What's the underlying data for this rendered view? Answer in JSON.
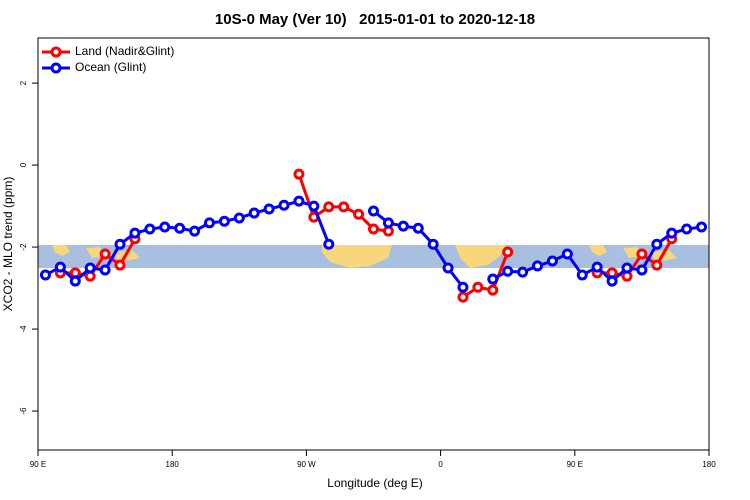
{
  "chart_data": {
    "type": "line",
    "title": "10S-0 May (Ver 10)   2015-01-01 to 2020-12-18",
    "xlabel": "Longitude (deg E)",
    "ylabel": "XCO2 - MLO trend (ppm)",
    "x": [
      95,
      105,
      115,
      125,
      135,
      145,
      155,
      165,
      175,
      185,
      195,
      205,
      215,
      225,
      235,
      245,
      255,
      265,
      275,
      285,
      295,
      305,
      315,
      325,
      335,
      345,
      355,
      365,
      375,
      385,
      395,
      405,
      415,
      425,
      435,
      445,
      455,
      465,
      475,
      485,
      495,
      505,
      515,
      525,
      535
    ],
    "series": [
      {
        "name": "Land (Nadir&Glint)",
        "color": "#ff0000",
        "values": [
          null,
          -2.63,
          -2.63,
          -2.71,
          -2.17,
          -2.44,
          -1.8,
          null,
          null,
          null,
          null,
          null,
          null,
          null,
          null,
          null,
          null,
          -0.22,
          -1.27,
          -1.02,
          -1.02,
          -1.2,
          -1.56,
          -1.61,
          null,
          null,
          null,
          null,
          -3.22,
          -2.98,
          -3.05,
          -2.12,
          null,
          null,
          null,
          null,
          null,
          -2.63,
          -2.63,
          -2.71,
          -2.17,
          -2.44,
          -1.8,
          null,
          null
        ]
      },
      {
        "name": "Ocean (Glint)",
        "color": "#0000ff",
        "values": [
          -2.68,
          -2.49,
          -2.83,
          -2.51,
          -2.56,
          -1.93,
          -1.66,
          -1.56,
          -1.51,
          -1.54,
          -1.61,
          -1.41,
          -1.37,
          -1.29,
          -1.17,
          -1.07,
          -0.98,
          -0.88,
          -1.0,
          -1.93,
          null,
          null,
          -1.12,
          -1.41,
          -1.49,
          -1.54,
          -1.93,
          -2.51,
          -2.98,
          null,
          -2.78,
          -2.59,
          -2.61,
          -2.46,
          -2.34,
          -2.17,
          -2.68,
          -2.49,
          -2.83,
          -2.51,
          -2.56,
          -1.93,
          -1.66,
          -1.56,
          -1.51
        ]
      }
    ],
    "xlim": [
      90,
      540
    ],
    "xticks": [
      {
        "value": 90,
        "label": "90 E"
      },
      {
        "value": 180,
        "label": "180"
      },
      {
        "value": 270,
        "label": "90 W"
      },
      {
        "value": 360,
        "label": "0"
      },
      {
        "value": 450,
        "label": "90 E"
      },
      {
        "value": 540,
        "label": "180"
      }
    ],
    "ylim": [
      -6.95,
      3.1
    ],
    "yticks": [
      -6,
      -4,
      -2,
      0,
      2
    ],
    "legend": "top-left"
  }
}
